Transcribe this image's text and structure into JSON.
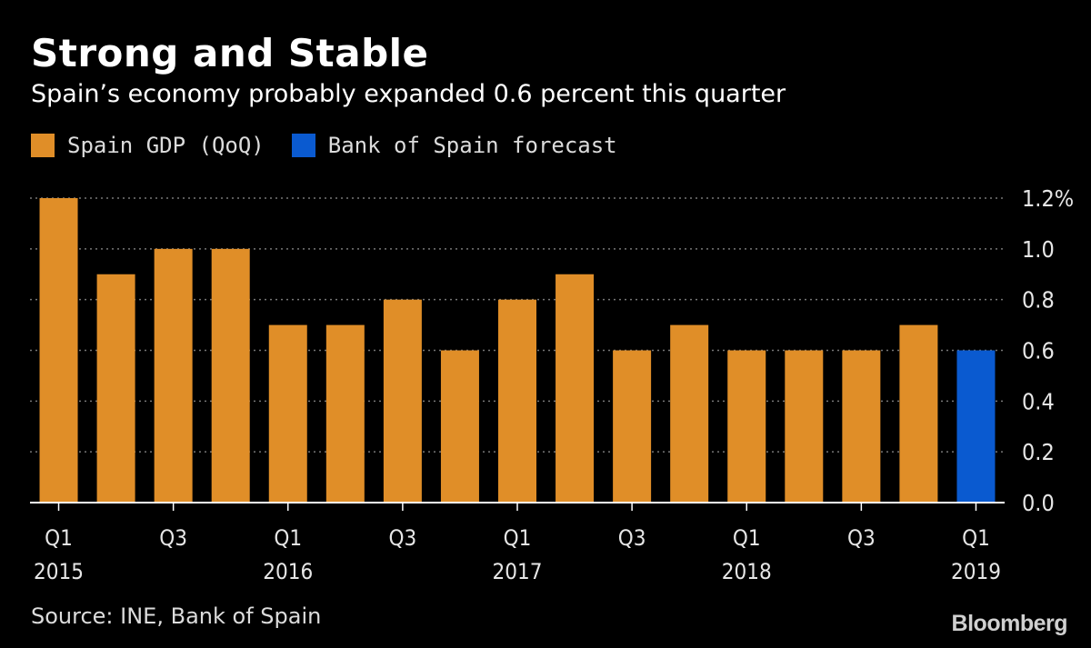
{
  "colors": {
    "actual": "#e08e28",
    "forecast": "#0a5ad0",
    "grid": "#777777",
    "axis_text": "#e6e6e6"
  },
  "chart_data": {
    "type": "bar",
    "title": "Strong and Stable",
    "subtitle": "Spain’s economy probably expanded 0.6 percent this quarter",
    "legend": [
      {
        "name": "Spain GDP (QoQ)",
        "color": "#e08e28"
      },
      {
        "name": "Bank of Spain forecast",
        "color": "#0a5ad0"
      }
    ],
    "categories": [
      "Q1 2015",
      "Q2 2015",
      "Q3 2015",
      "Q4 2015",
      "Q1 2016",
      "Q2 2016",
      "Q3 2016",
      "Q4 2016",
      "Q1 2017",
      "Q2 2017",
      "Q3 2017",
      "Q4 2017",
      "Q1 2018",
      "Q2 2018",
      "Q3 2018",
      "Q4 2018",
      "Q1 2019"
    ],
    "series": [
      {
        "name": "Spain GDP (QoQ)",
        "values": [
          1.2,
          0.9,
          1.0,
          1.0,
          0.7,
          0.7,
          0.8,
          0.6,
          0.8,
          0.9,
          0.6,
          0.7,
          0.6,
          0.6,
          0.6,
          0.7,
          null
        ]
      },
      {
        "name": "Bank of Spain forecast",
        "values": [
          null,
          null,
          null,
          null,
          null,
          null,
          null,
          null,
          null,
          null,
          null,
          null,
          null,
          null,
          null,
          null,
          0.6
        ]
      }
    ],
    "x_tick_labels": [
      {
        "index": 0,
        "quarter": "Q1",
        "year": "2015"
      },
      {
        "index": 2,
        "quarter": "Q3",
        "year": ""
      },
      {
        "index": 4,
        "quarter": "Q1",
        "year": "2016"
      },
      {
        "index": 6,
        "quarter": "Q3",
        "year": ""
      },
      {
        "index": 8,
        "quarter": "Q1",
        "year": "2017"
      },
      {
        "index": 10,
        "quarter": "Q3",
        "year": ""
      },
      {
        "index": 12,
        "quarter": "Q1",
        "year": "2018"
      },
      {
        "index": 14,
        "quarter": "Q3",
        "year": ""
      },
      {
        "index": 16,
        "quarter": "Q1",
        "year": "2019"
      }
    ],
    "y_ticks": [
      "0.0",
      "0.2",
      "0.4",
      "0.6",
      "0.8",
      "1.0",
      "1.2%"
    ],
    "ylim": [
      0,
      1.2
    ],
    "grid": true,
    "xlabel": "",
    "ylabel": ""
  },
  "footer": {
    "source": "Source: INE, Bank of Spain",
    "brand": "Bloomberg"
  }
}
